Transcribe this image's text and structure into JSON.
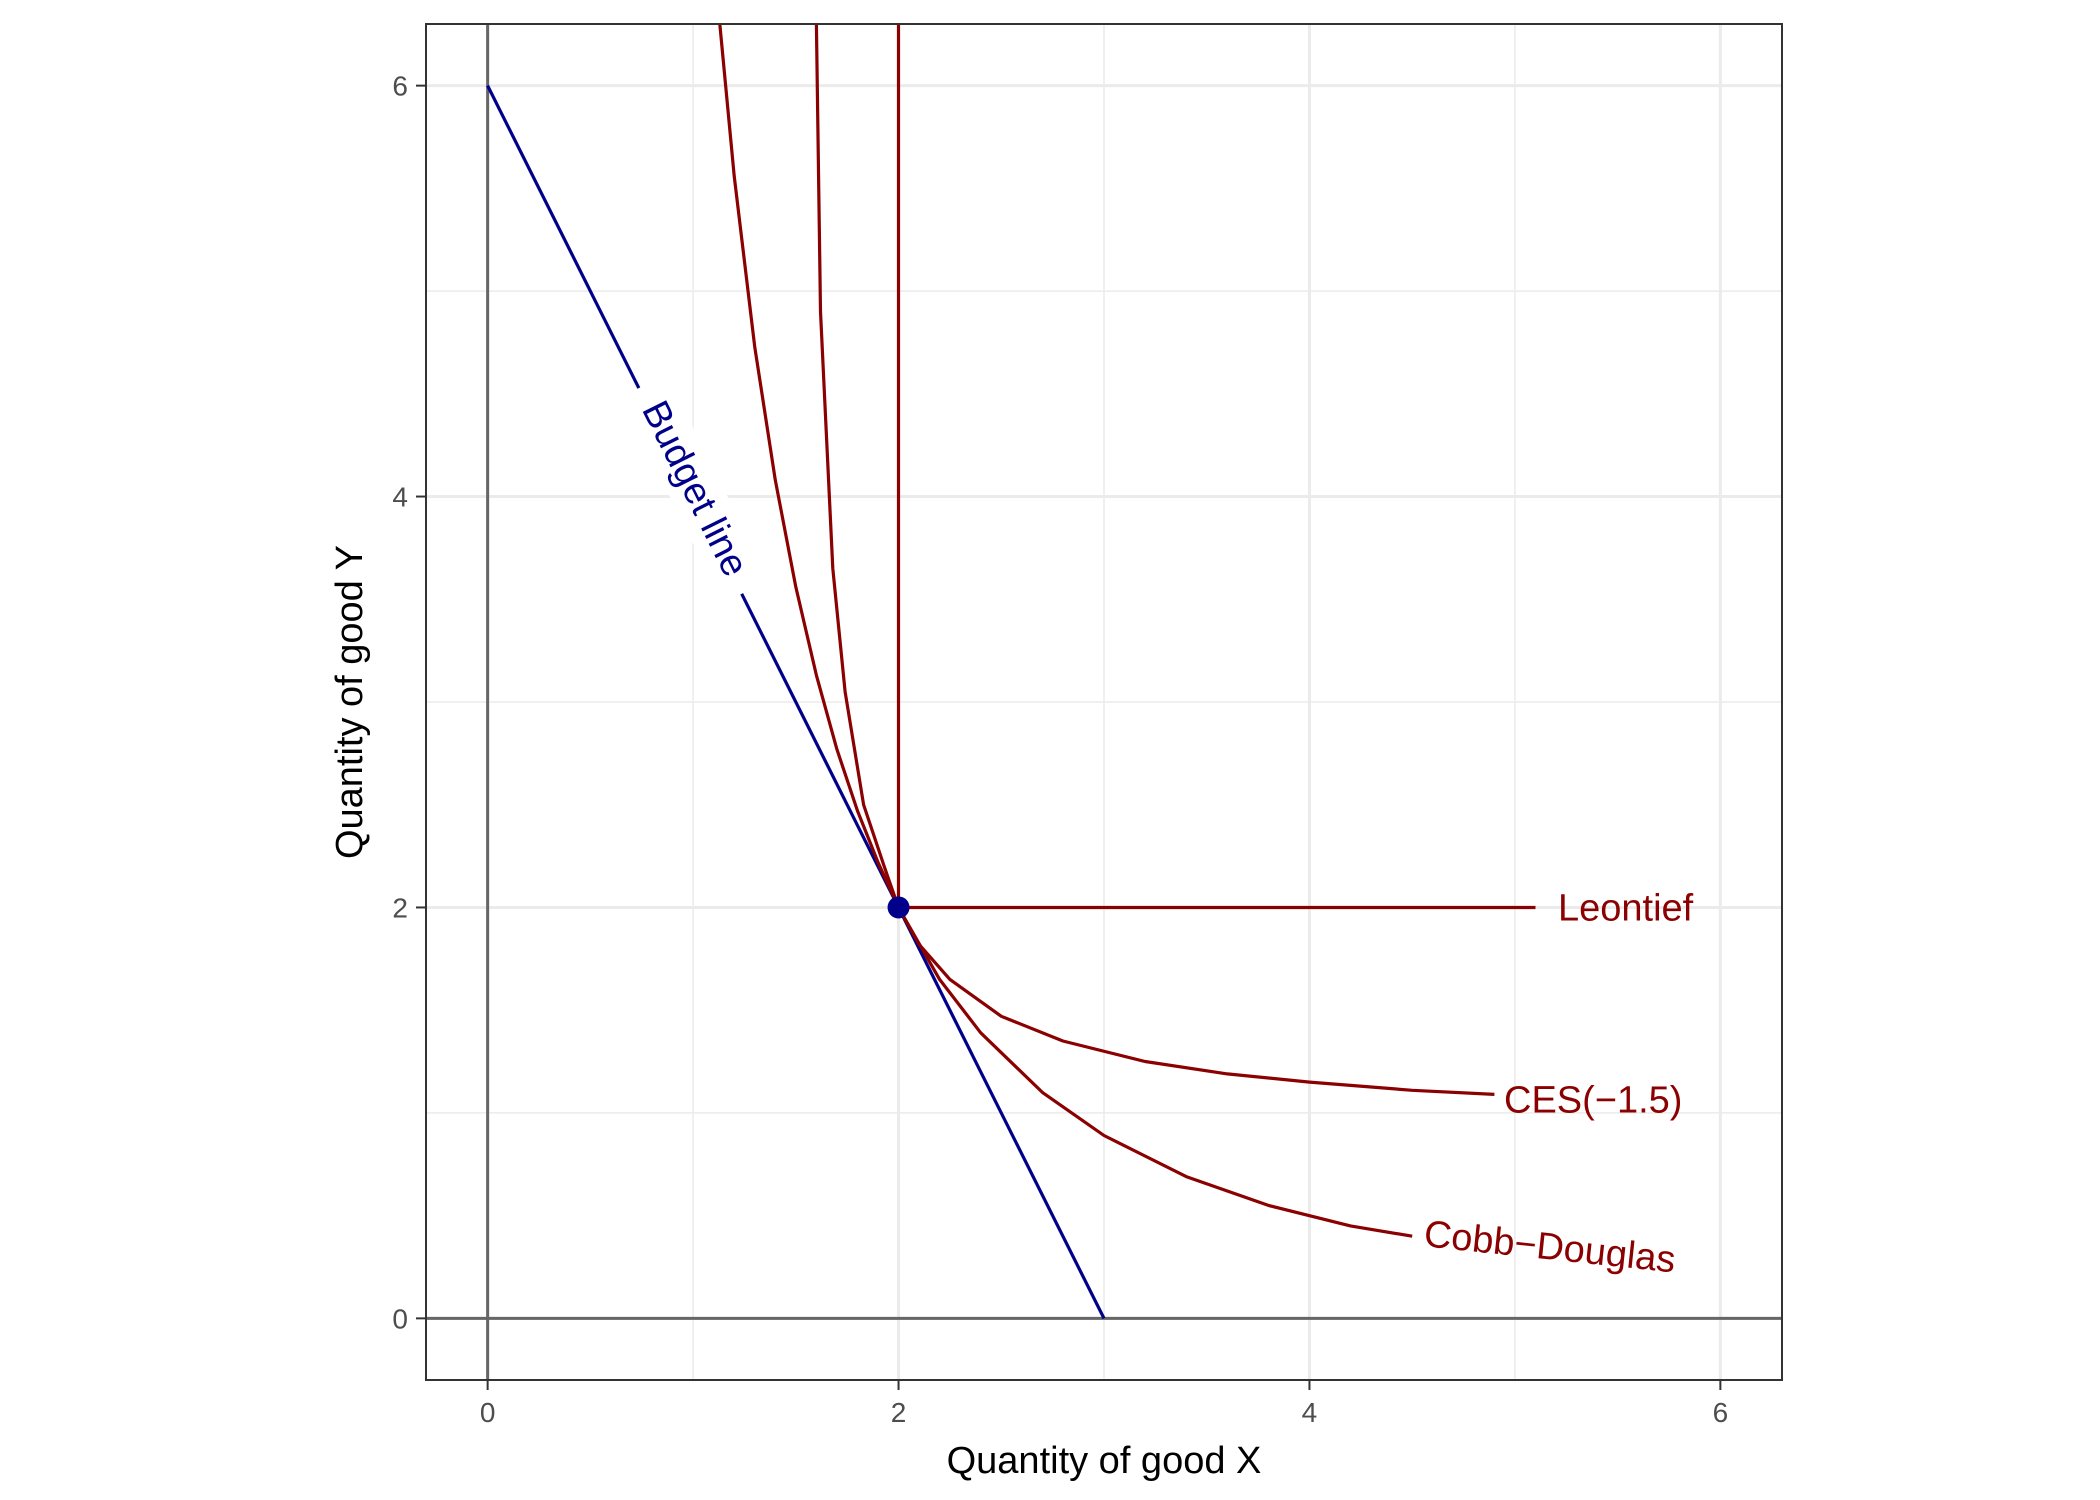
{
  "chart_data": {
    "type": "line",
    "xlabel": "Quantity of good X",
    "ylabel": "Quantity of good Y",
    "xlim": [
      -0.3,
      6.3
    ],
    "ylim": [
      -0.3,
      6.3
    ],
    "x_ticks": [
      0,
      2,
      4,
      6
    ],
    "y_ticks": [
      0,
      2,
      4,
      6
    ],
    "grid": true,
    "colors": {
      "budget": "#00008B",
      "indifference": "#8B0000",
      "zero_lines": "#666666",
      "grid": "#EBEBEB"
    },
    "series": [
      {
        "name": "Budget line",
        "x": [
          0,
          3
        ],
        "y": [
          6,
          0
        ]
      },
      {
        "name": "Leontief",
        "segments": [
          {
            "x": [
              2,
              2
            ],
            "y": [
              2,
              6.3
            ]
          },
          {
            "x": [
              2,
              5.1
            ],
            "y": [
              2,
              2
            ]
          }
        ]
      },
      {
        "name": "CES(−1.5)",
        "x": [
          1.6,
          1.62,
          1.68,
          1.74,
          1.83,
          1.93,
          2,
          2.1,
          2.25,
          2.5,
          2.8,
          3.2,
          3.6,
          4,
          4.5,
          4.9
        ],
        "y": [
          6.3,
          4.9,
          3.65,
          3.05,
          2.5,
          2.2,
          2,
          1.82,
          1.65,
          1.47,
          1.35,
          1.25,
          1.19,
          1.15,
          1.11,
          1.09
        ]
      },
      {
        "name": "Cobb−Douglas",
        "x": [
          1.13,
          1.2,
          1.3,
          1.4,
          1.5,
          1.6,
          1.7,
          1.8,
          1.9,
          2,
          2.2,
          2.4,
          2.7,
          3,
          3.4,
          3.8,
          4.2,
          4.5
        ],
        "y": [
          6.3,
          5.56,
          4.73,
          4.08,
          3.56,
          3.13,
          2.77,
          2.47,
          2.22,
          2,
          1.65,
          1.39,
          1.1,
          0.89,
          0.69,
          0.55,
          0.45,
          0.4
        ]
      }
    ],
    "points": [
      {
        "x": 2,
        "y": 2
      }
    ],
    "annotations": [
      "Budget line",
      "Leontief",
      "CES(−1.5)",
      "Cobb−Douglas"
    ]
  }
}
